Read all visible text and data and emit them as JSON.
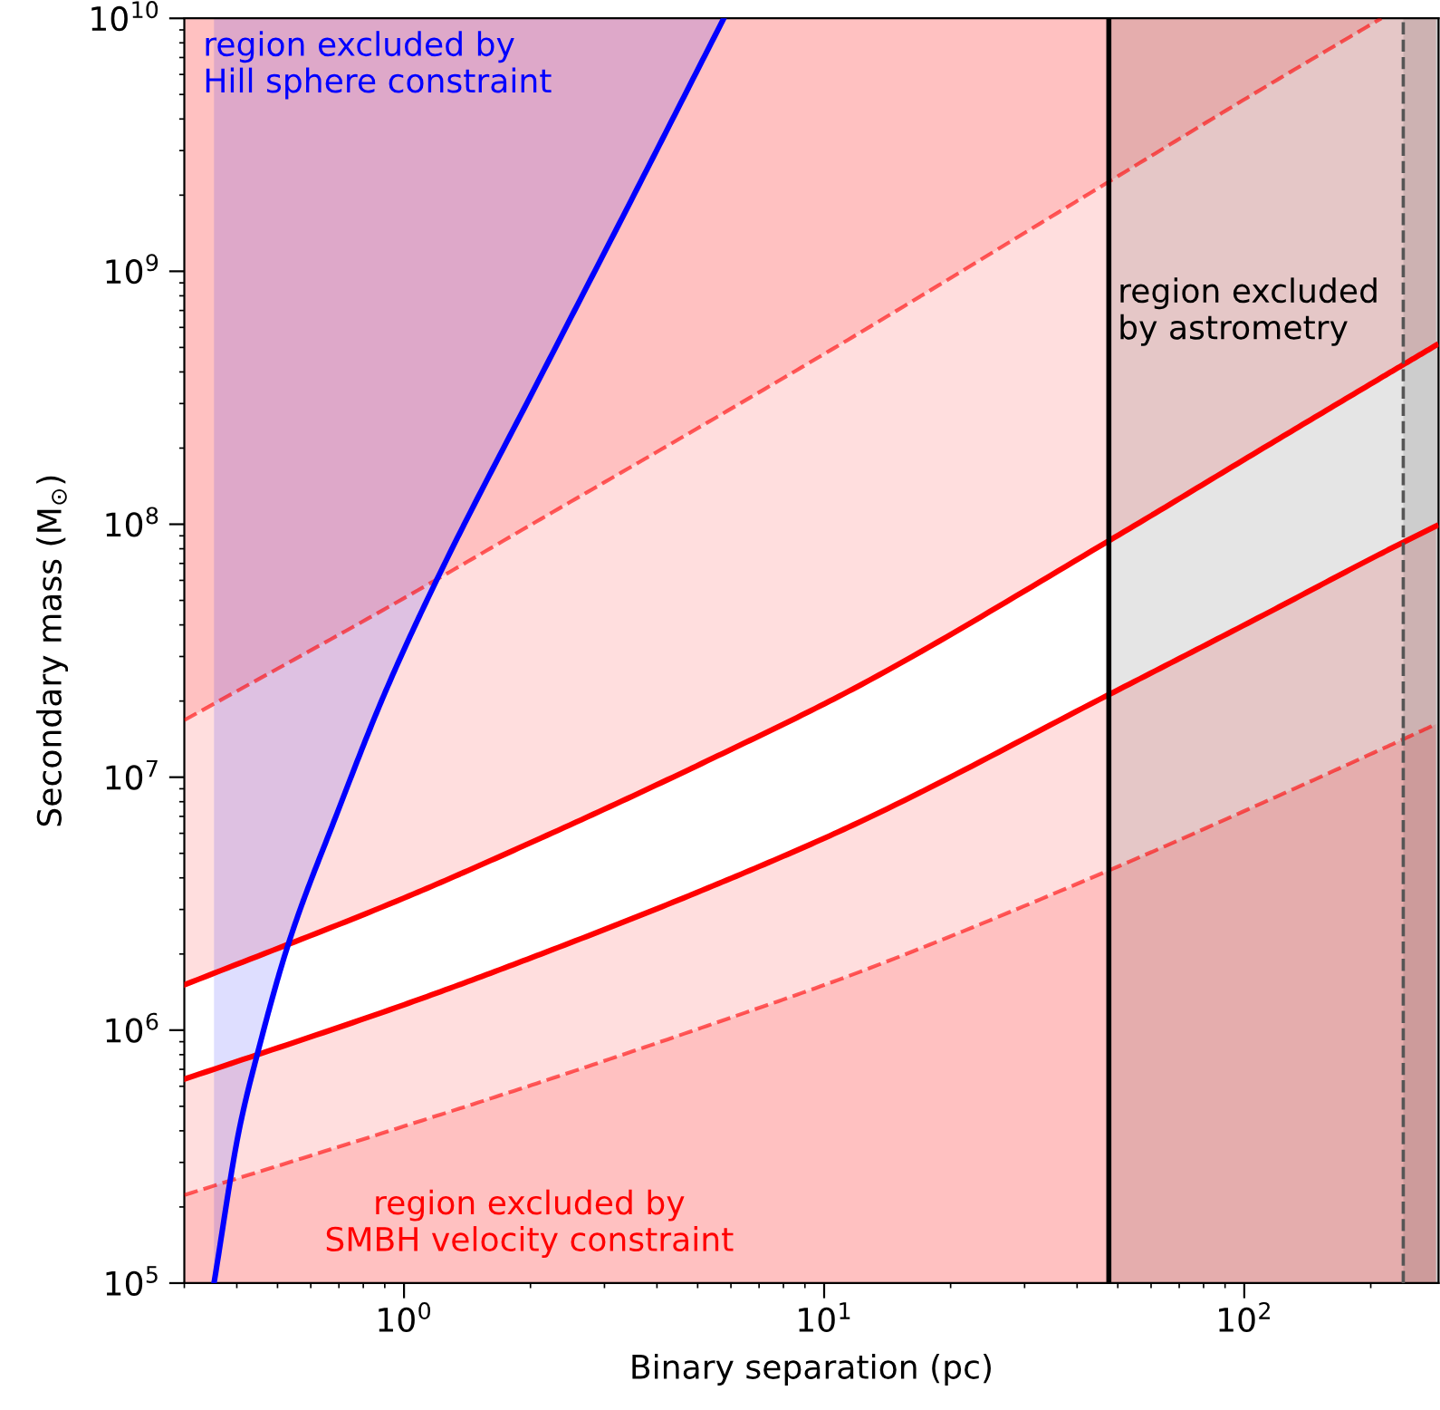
{
  "chart_data": {
    "type": "line",
    "xlabel": "Binary separation (pc)",
    "ylabel": "Secondary mass (M$_{⊙}$)",
    "log": "xy",
    "grid": false,
    "legend": false,
    "xlim": [
      0.3,
      290
    ],
    "ylim": [
      100000,
      10000000000
    ],
    "xticks": [
      {
        "value": 1,
        "label": "10$^{0}$"
      },
      {
        "value": 10,
        "label": "10$^{1}$"
      },
      {
        "value": 100,
        "label": "10$^{2}$"
      }
    ],
    "yticks": [
      {
        "value": 100000,
        "label": "10$^{5}$"
      },
      {
        "value": 1000000,
        "label": "10$^{6}$"
      },
      {
        "value": 10000000,
        "label": "10$^{7}$"
      },
      {
        "value": 100000000,
        "label": "10$^{8}$"
      },
      {
        "value": 1000000000,
        "label": "10$^{9}$"
      },
      {
        "value": 10000000000,
        "label": "10$^{10}$"
      }
    ],
    "series": [
      {
        "color": "#ff0000",
        "line_style": "dashed",
        "x": [
          0.3,
          1,
          2.12,
          5.44,
          11.7,
          47.6,
          111,
          212
        ],
        "values": [
          16800000,
          51000000,
          105000000,
          260000000,
          550000000,
          2260000000,
          5300000000,
          10000000000
        ],
        "lower": [
          16800000,
          51000000,
          105000000,
          260000000,
          550000000,
          2260000000,
          5300000000,
          10000000000
        ],
        "upper": [
          10000000000,
          10000000000,
          10000000000,
          10000000000,
          10000000000,
          10000000000,
          10000000000,
          10000000000
        ]
      },
      {
        "color": "#ff0000",
        "line_style": "solid",
        "x": [
          0.3,
          1,
          2.12,
          5.44,
          11.7,
          47.6,
          111,
          212,
          286
        ],
        "values": [
          1510000,
          3330000,
          5750000,
          11900000,
          22300000,
          86000000,
          200000000,
          380000000,
          510000000
        ],
        "lower": [
          1510000,
          3330000,
          5750000,
          11900000,
          22300000,
          86000000,
          200000000,
          380000000,
          510000000
        ],
        "upper": [
          10000000000,
          10000000000,
          10000000000,
          10000000000,
          10000000000,
          10000000000,
          10000000000,
          10000000000,
          10000000000
        ]
      },
      {
        "color": "#ff0000",
        "line_style": "solid",
        "x": [
          0.3,
          1,
          2.12,
          5.44,
          11.7,
          47.6,
          111,
          212,
          286
        ],
        "values": [
          640000,
          1260000,
          2000000,
          3720000,
          6460000,
          21200000,
          43700000,
          76700000,
          98400000
        ],
        "lower": [
          100000,
          100000,
          100000,
          100000,
          100000,
          100000,
          100000,
          100000,
          100000
        ],
        "upper": [
          640000,
          1260000,
          2000000,
          3720000,
          6460000,
          21200000,
          43700000,
          76700000,
          98400000
        ]
      },
      {
        "color": "#ff0000",
        "line_style": "dashed",
        "name": "region excluded by\nSMBH velocity constraint",
        "x": [
          0.3,
          1,
          2.12,
          5.44,
          11.7,
          47.6,
          111,
          212,
          286
        ],
        "values": [
          223000,
          417000,
          624000,
          1060000,
          1660000,
          4280000,
          7940000,
          12900000,
          16200000
        ],
        "lower": [
          100000,
          100000,
          100000,
          100000,
          100000,
          100000,
          100000,
          100000,
          100000
        ],
        "upper": [
          223000,
          417000,
          624000,
          1060000,
          1660000,
          4280000,
          7940000,
          12900000,
          16200000
        ]
      },
      {
        "color": "#0000ff",
        "line_style": "solid",
        "name": "region excluded by\nHill sphere constraint",
        "x": [
          0.353,
          0.406,
          0.449,
          0.531,
          0.693,
          0.897,
          1.195,
          2.12,
          3.48,
          5.77
        ],
        "values": [
          100000,
          410000,
          820000,
          2200000,
          7200000,
          21200000,
          60000000,
          387000000,
          1920000000,
          10000000000
        ],
        "lower": [
          100000,
          410000,
          820000,
          2200000,
          7200000,
          21200000,
          60000000,
          387000000,
          1920000000,
          10000000000
        ],
        "upper": [
          10000000000,
          10000000000,
          10000000000,
          10000000000,
          10000000000,
          10000000000,
          10000000000,
          10000000000,
          10000000000,
          10000000000
        ]
      }
    ],
    "bands": [
      {
        "axis": "x",
        "from": 47.6,
        "to": 290,
        "label": "region excluded\nby astrometry",
        "color": "#000000"
      },
      {
        "axis": "x",
        "from": 239,
        "to": 290,
        "color": "#000000"
      }
    ],
    "ref_lines": [
      {
        "axis": "x",
        "value": 47.6,
        "color": "#000000",
        "line_style": "solid"
      },
      {
        "axis": "x",
        "value": 239,
        "color": "#555555",
        "line_style": "dashed"
      }
    ]
  }
}
